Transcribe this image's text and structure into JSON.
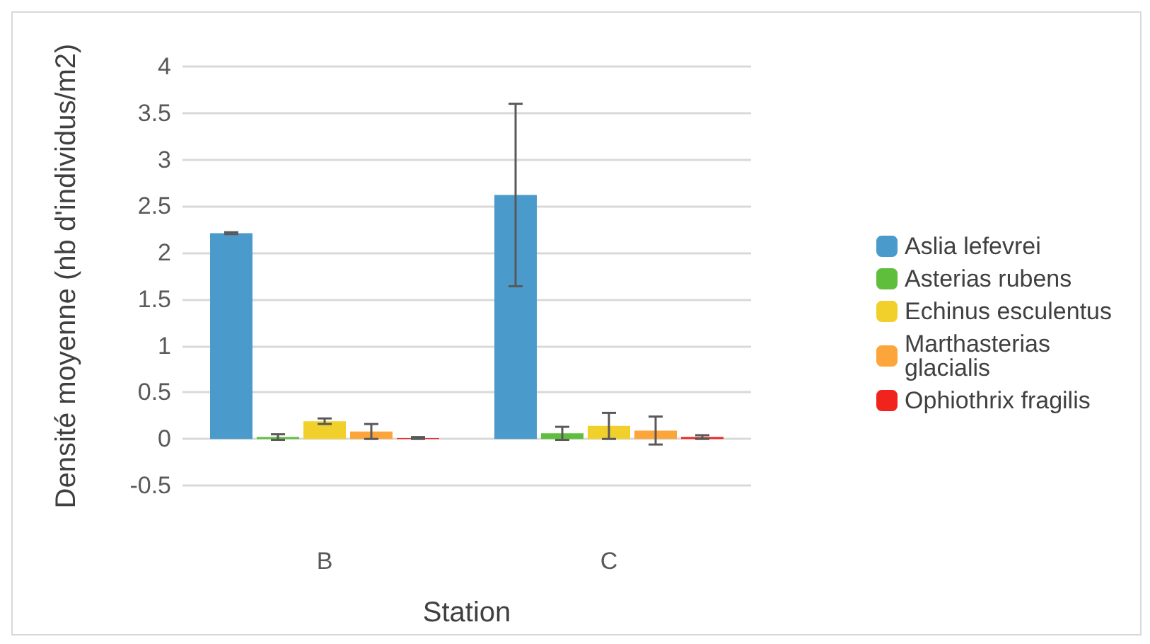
{
  "chart_data": {
    "type": "bar",
    "xlabel": "Station",
    "ylabel": "Densité moyenne (nb d'individus/m2)",
    "categories": [
      "B",
      "C"
    ],
    "series": [
      {
        "name": "Aslia lefevrei",
        "color": "#4a9acb",
        "values": [
          2.21,
          2.62
        ],
        "errors": [
          0.01,
          0.98
        ]
      },
      {
        "name": "Asterias rubens",
        "color": "#5fbf3c",
        "values": [
          0.02,
          0.06
        ],
        "errors": [
          0.03,
          0.07
        ]
      },
      {
        "name": "Echinus esculentus",
        "color": "#f2d02b",
        "values": [
          0.19,
          0.14
        ],
        "errors": [
          0.03,
          0.14
        ]
      },
      {
        "name": "Marthasterias glacialis",
        "color": "#fba53a",
        "values": [
          0.08,
          0.09
        ],
        "errors": [
          0.08,
          0.15
        ]
      },
      {
        "name": "Ophiothrix fragilis",
        "color": "#f0231d",
        "values": [
          0.01,
          0.02
        ],
        "errors": [
          0.01,
          0.02
        ]
      }
    ],
    "ylim": [
      -0.5,
      4
    ],
    "yticks": [
      -0.5,
      0,
      0.5,
      1,
      1.5,
      2,
      2.5,
      3,
      3.5,
      4
    ],
    "grid": "y",
    "legend": "right"
  }
}
